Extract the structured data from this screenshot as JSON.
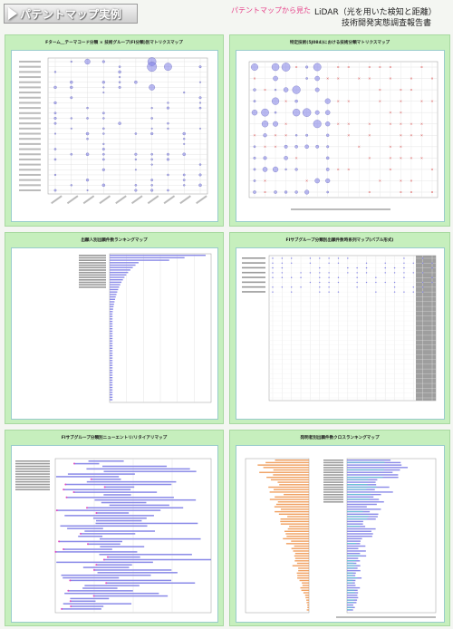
{
  "header": {
    "title": "パテントマップ実例",
    "from_label": "パテントマップから見た",
    "report_line1": "LiDAR（光を用いた検知と距離）",
    "report_line2": "技術開発実態調査報告書"
  },
  "panels": [
    {
      "title": "Fターム＿テーマコード分類 × 技術グループ(FI分類)別マトリクスマップ"
    },
    {
      "title": "特定技術(5J084)における技術分類マトリクスマップ"
    },
    {
      "title": "出願人別出願件数ランキングマップ"
    },
    {
      "title": "FIサブグループ分類別出願件数時系列マップ(バブル形式)"
    },
    {
      "title": "FIサブグループ分類別ニューエントリ/リタイアリマップ"
    },
    {
      "title": "発明者別出願件数クロスランキングマップ"
    }
  ],
  "colors": {
    "bubble": "#7f7fe6",
    "bar": "#8a8ae8",
    "orange": "#f0a060",
    "teal": "#60d0d0",
    "green_bg": "#c6efbd"
  }
}
